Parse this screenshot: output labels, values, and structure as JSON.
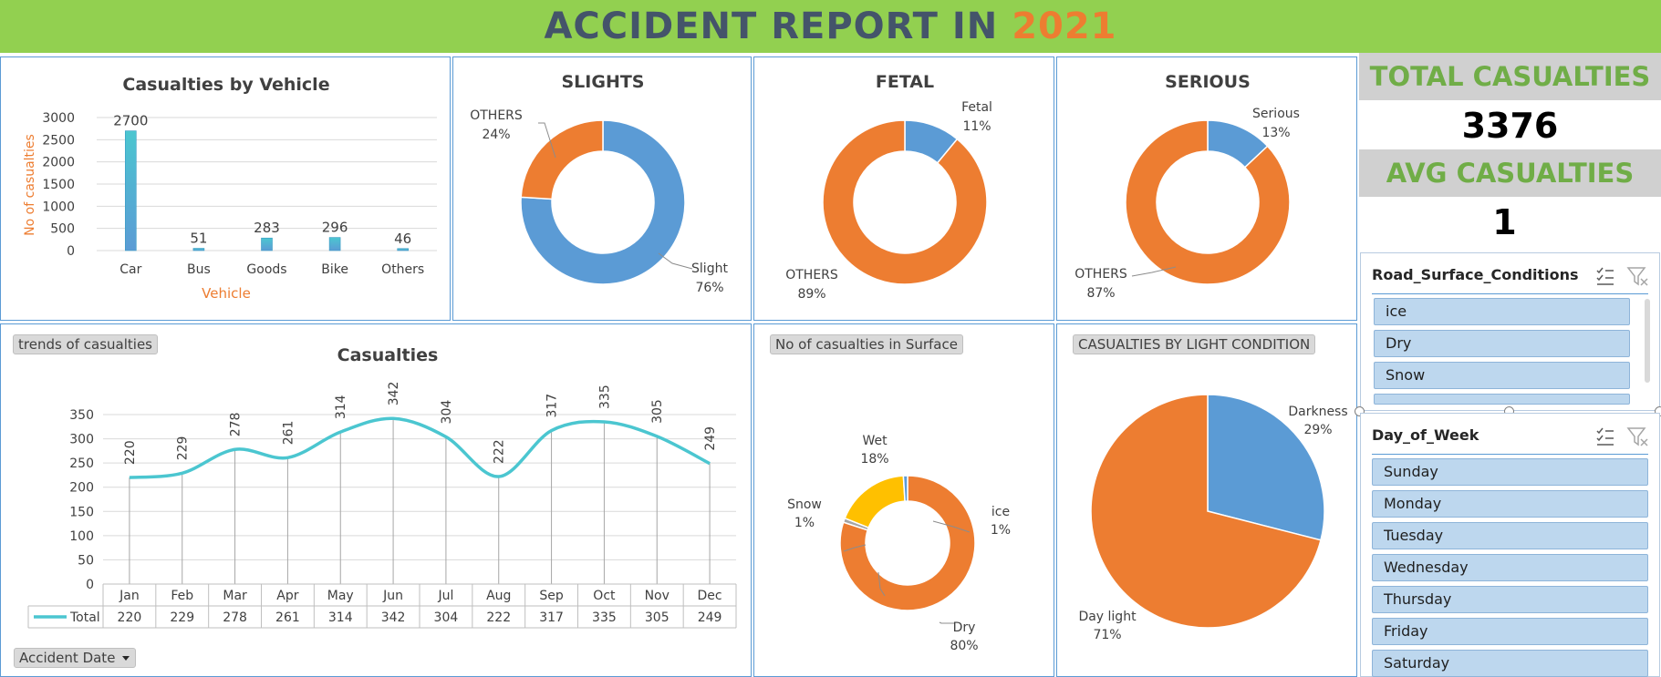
{
  "header": {
    "title_prefix": "ACCIDENT REPORT IN ",
    "title_year": "2021"
  },
  "kpis": {
    "total_label": "TOTAL CASUALTIES",
    "total_value": "3376",
    "avg_label": "AVG CASUALTIES",
    "avg_value": "1"
  },
  "tags": {
    "trends": "trends of casualties",
    "surface": "No of casualties in Surface",
    "light": "CASUALTIES BY LIGHT CONDITION",
    "date_filter": "Accident Date"
  },
  "slicers": {
    "road_surface": {
      "title": "Road_Surface_Conditions",
      "items": [
        "ice",
        "Dry",
        "Snow"
      ]
    },
    "day_of_week": {
      "title": "Day_of_Week",
      "items": [
        "Sunday",
        "Monday",
        "Tuesday",
        "Wednesday",
        "Thursday",
        "Friday",
        "Saturday"
      ]
    }
  },
  "colors": {
    "orange": "#ed7d31",
    "blue": "#5b9bd5",
    "teal": "#4bc6d0",
    "yellow": "#ffc000",
    "grey": "#a5a5a5",
    "green": "#92d050"
  },
  "chart_data": [
    {
      "id": "vehicle",
      "type": "bar",
      "title": "Casualties by Vehicle",
      "xlabel": "Vehicle",
      "ylabel": "No of casualties",
      "categories": [
        "Car",
        "Bus",
        "Goods",
        "Bike",
        "Others"
      ],
      "values": [
        2700,
        51,
        283,
        296,
        46
      ],
      "value_labels": [
        "2700",
        "51",
        "283",
        "296",
        "46"
      ],
      "yticks": [
        "0",
        "500",
        "1000",
        "1500",
        "2000",
        "2500",
        "3000"
      ],
      "ylim": [
        0,
        3000
      ],
      "grid": true
    },
    {
      "id": "slights",
      "type": "pie",
      "title": "SLIGHTS",
      "slices": [
        {
          "name": "Slight",
          "pct": "76%",
          "value": 76
        },
        {
          "name": "OTHERS",
          "pct": "24%",
          "value": 24
        }
      ]
    },
    {
      "id": "fetal",
      "type": "pie",
      "title": "FETAL",
      "slices": [
        {
          "name": "Fetal",
          "pct": "11%",
          "value": 11
        },
        {
          "name": "OTHERS",
          "pct": "89%",
          "value": 89
        }
      ]
    },
    {
      "id": "serious",
      "type": "pie",
      "title": "SERIOUS",
      "slices": [
        {
          "name": "Serious",
          "pct": "13%",
          "value": 13
        },
        {
          "name": "OTHERS",
          "pct": "87%",
          "value": 87
        }
      ]
    },
    {
      "id": "trend",
      "type": "line",
      "title": "Casualties",
      "categories": [
        "Jan",
        "Feb",
        "Mar",
        "Apr",
        "May",
        "Jun",
        "Jul",
        "Aug",
        "Sep",
        "Oct",
        "Nov",
        "Dec"
      ],
      "series": [
        {
          "name": "Total",
          "values": [
            220,
            229,
            278,
            261,
            314,
            342,
            304,
            222,
            317,
            335,
            305,
            249
          ]
        }
      ],
      "yticks": [
        "0",
        "50",
        "100",
        "150",
        "200",
        "250",
        "300",
        "350"
      ],
      "ylim": [
        0,
        350
      ],
      "grid": true
    },
    {
      "id": "surface",
      "type": "pie",
      "slices": [
        {
          "name": "Dry",
          "pct": "80%",
          "value": 80
        },
        {
          "name": "Snow",
          "pct": "1%",
          "value": 1
        },
        {
          "name": "Wet",
          "pct": "18%",
          "value": 18
        },
        {
          "name": "ice",
          "pct": "1%",
          "value": 1
        }
      ]
    },
    {
      "id": "light",
      "type": "pie",
      "slices": [
        {
          "name": "Darkness",
          "pct": "29%",
          "value": 29
        },
        {
          "name": "Day light",
          "pct": "71%",
          "value": 71
        }
      ]
    }
  ]
}
